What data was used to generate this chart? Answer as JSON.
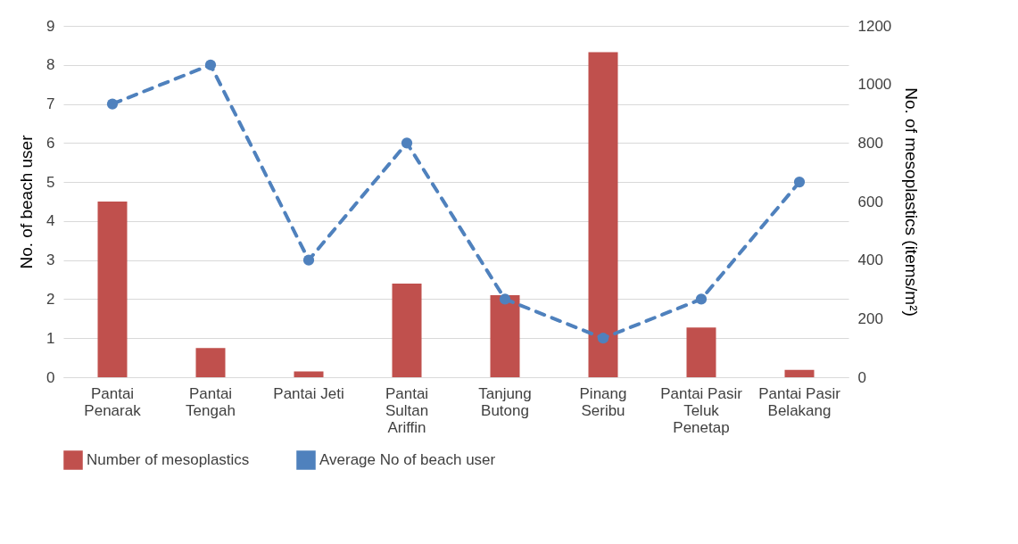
{
  "chart_data": {
    "type": "bar",
    "categories": [
      "Pantai Penarak",
      "Pantai Tengah",
      "Pantai Jeti",
      "Pantai Sultan Ariffin",
      "Tanjung Butong",
      "Pinang Seribu",
      "Pantai Pasir Teluk Penetap",
      "Pantai Pasir Belakang"
    ],
    "ylabel": "No. of beach user",
    "y2label": "No. of mesoplastics (items/m²)",
    "ylim": [
      0,
      9
    ],
    "yticks": [
      0,
      1,
      2,
      3,
      4,
      5,
      6,
      7,
      8,
      9
    ],
    "y2lim": [
      0,
      1200
    ],
    "y2ticks": [
      0,
      200,
      400,
      600,
      800,
      1000,
      1200
    ],
    "grid": "y",
    "legend": "bottom",
    "marker": "circle",
    "line_style": "dashed",
    "series": [
      {
        "name": "Number of mesoplastics",
        "axis": "y2",
        "color": "#c0504d",
        "values": [
          600,
          100,
          20,
          320,
          280,
          1110,
          170,
          25
        ]
      },
      {
        "name": "Average No of beach user",
        "type": "line",
        "color": "#4f81bd",
        "values": [
          7,
          8,
          3,
          6,
          2,
          1,
          2,
          5
        ]
      }
    ]
  }
}
